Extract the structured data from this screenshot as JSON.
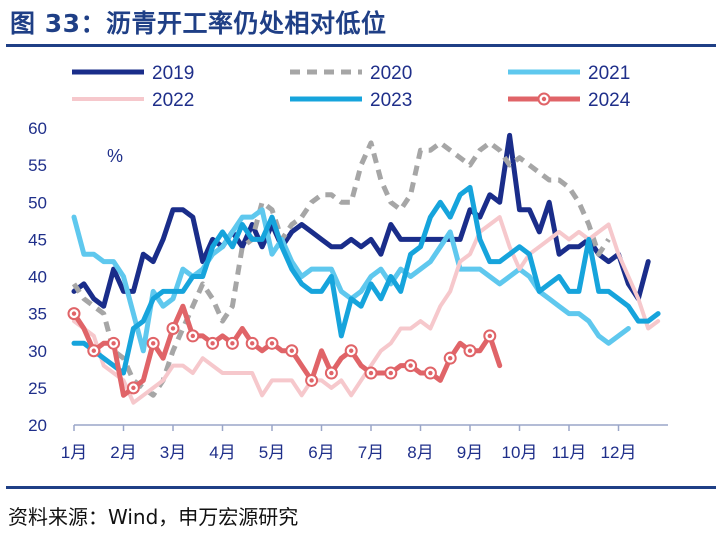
{
  "title": "图 33：沥青开工率仍处相对低位",
  "source": "资料来源：Wind，申万宏源研究",
  "chart_data": {
    "type": "line",
    "unit_label": "%",
    "ylim": [
      20,
      60
    ],
    "yticks": [
      20,
      25,
      30,
      35,
      40,
      45,
      50,
      55,
      60
    ],
    "x_tick_labels": [
      "1月",
      "2月",
      "3月",
      "4月",
      "5月",
      "6月",
      "7月",
      "8月",
      "9月",
      "10月",
      "11月",
      "12月"
    ],
    "x_domain": [
      1,
      13
    ],
    "grid": false,
    "legend": "top",
    "series": [
      {
        "name": "2019",
        "color": "#1a2d8a",
        "style": "solid",
        "width": 5,
        "x": [
          1.0,
          1.2,
          1.4,
          1.6,
          1.8,
          2.0,
          2.2,
          2.4,
          2.6,
          2.8,
          3.0,
          3.2,
          3.4,
          3.6,
          3.8,
          4.0,
          4.2,
          4.4,
          4.6,
          4.8,
          5.0,
          5.2,
          5.4,
          5.6,
          5.8,
          6.0,
          6.2,
          6.4,
          6.6,
          6.8,
          7.0,
          7.2,
          7.4,
          7.6,
          7.8,
          8.0,
          8.2,
          8.4,
          8.6,
          8.8,
          9.0,
          9.2,
          9.4,
          9.6,
          9.8,
          10.0,
          10.2,
          10.4,
          10.6,
          10.8,
          11.0,
          11.2,
          11.4,
          11.6,
          11.8,
          12.0,
          12.2,
          12.4,
          12.6,
          12.8
        ],
        "y": [
          38,
          39,
          37,
          36,
          41,
          38,
          38,
          43,
          42,
          45,
          49,
          49,
          48,
          42,
          45,
          44,
          46,
          44,
          47,
          44,
          47,
          44,
          46,
          47,
          46,
          45,
          44,
          44,
          45,
          44,
          45,
          43,
          47,
          45,
          45,
          45,
          45,
          45,
          45,
          45,
          49,
          48,
          51,
          50,
          59,
          49,
          49,
          46,
          50,
          43,
          44,
          44,
          45,
          43,
          42,
          43,
          39,
          37,
          42,
          null
        ]
      },
      {
        "name": "2020",
        "color": "#a6a6a6",
        "style": "dashed",
        "width": 5,
        "x": [
          1.0,
          1.2,
          1.4,
          1.6,
          1.8,
          2.0,
          2.2,
          2.4,
          2.6,
          2.8,
          3.0,
          3.2,
          3.4,
          3.6,
          3.8,
          4.0,
          4.2,
          4.4,
          4.6,
          4.8,
          5.0,
          5.2,
          5.4,
          5.6,
          5.8,
          6.0,
          6.2,
          6.4,
          6.6,
          6.8,
          7.0,
          7.2,
          7.4,
          7.6,
          7.8,
          8.0,
          8.2,
          8.4,
          8.6,
          8.8,
          9.0,
          9.2,
          9.4,
          9.6,
          9.8,
          10.0,
          10.2,
          10.4,
          10.6,
          10.8,
          11.0,
          11.2,
          11.4,
          11.6,
          11.8,
          12.0,
          12.2,
          12.4,
          12.6,
          12.8
        ],
        "y": [
          39,
          37,
          36,
          35,
          30,
          29,
          26,
          25,
          24,
          26,
          30,
          33,
          36,
          39,
          37,
          34,
          36,
          44,
          45,
          50,
          49,
          45,
          47,
          48,
          50,
          51,
          51,
          50,
          50,
          55,
          58,
          53,
          50,
          49,
          51,
          57,
          57,
          58,
          57,
          56,
          55,
          57,
          58,
          57,
          55,
          56,
          55,
          54,
          53,
          53,
          52,
          50,
          47,
          43,
          45,
          null,
          null,
          null,
          null,
          null
        ]
      },
      {
        "name": "2021",
        "color": "#5fc8ee",
        "style": "solid",
        "width": 5,
        "x": [
          1.0,
          1.2,
          1.4,
          1.6,
          1.8,
          2.0,
          2.2,
          2.4,
          2.6,
          2.8,
          3.0,
          3.2,
          3.4,
          3.6,
          3.8,
          4.0,
          4.2,
          4.4,
          4.6,
          4.8,
          5.0,
          5.2,
          5.4,
          5.6,
          5.8,
          6.0,
          6.2,
          6.4,
          6.6,
          6.8,
          7.0,
          7.2,
          7.4,
          7.6,
          7.8,
          8.0,
          8.2,
          8.4,
          8.6,
          8.8,
          9.0,
          9.2,
          9.4,
          9.6,
          9.8,
          10.0,
          10.2,
          10.4,
          10.6,
          10.8,
          11.0,
          11.2,
          11.4,
          11.6,
          11.8,
          12.0,
          12.2,
          12.4,
          12.6,
          12.8
        ],
        "y": [
          48,
          43,
          43,
          42,
          42,
          40,
          35,
          30,
          38,
          36,
          37,
          41,
          40,
          41,
          43,
          44,
          46,
          48,
          48,
          49,
          43,
          45,
          42,
          40,
          41,
          41,
          41,
          38,
          37,
          38,
          40,
          41,
          39,
          41,
          40,
          41,
          42,
          44,
          46,
          41,
          41,
          41,
          40,
          39,
          40,
          41,
          40,
          38,
          37,
          36,
          35,
          35,
          34,
          32,
          31,
          32,
          33,
          null,
          null,
          null
        ]
      },
      {
        "name": "2022",
        "color": "#f6c8cc",
        "style": "solid",
        "width": 4,
        "x": [
          1.0,
          1.2,
          1.4,
          1.6,
          1.8,
          2.0,
          2.2,
          2.4,
          2.6,
          2.8,
          3.0,
          3.2,
          3.4,
          3.6,
          3.8,
          4.0,
          4.2,
          4.4,
          4.6,
          4.8,
          5.0,
          5.2,
          5.4,
          5.6,
          5.8,
          6.0,
          6.2,
          6.4,
          6.6,
          6.8,
          7.0,
          7.2,
          7.4,
          7.6,
          7.8,
          8.0,
          8.2,
          8.4,
          8.6,
          8.8,
          9.0,
          9.2,
          9.4,
          9.6,
          9.8,
          10.0,
          10.2,
          10.4,
          10.6,
          10.8,
          11.0,
          11.2,
          11.4,
          11.6,
          11.8,
          12.0,
          12.2,
          12.4,
          12.6,
          12.8
        ],
        "y": [
          34,
          33,
          32,
          28,
          27,
          26,
          23,
          24,
          25,
          26,
          28,
          28,
          27,
          29,
          28,
          27,
          27,
          27,
          27,
          24,
          26,
          26,
          26,
          24,
          26,
          26,
          25,
          26,
          24,
          26,
          28,
          30,
          31,
          33,
          33,
          34,
          33,
          36,
          38,
          42,
          43,
          46,
          47,
          48,
          44,
          41,
          43,
          44,
          45,
          46,
          45,
          46,
          45,
          46,
          47,
          43,
          40,
          37,
          33,
          34
        ]
      },
      {
        "name": "2023",
        "color": "#16a4dc",
        "style": "solid",
        "width": 5,
        "x": [
          1.0,
          1.2,
          1.4,
          1.6,
          1.8,
          2.0,
          2.2,
          2.4,
          2.6,
          2.8,
          3.0,
          3.2,
          3.4,
          3.6,
          3.8,
          4.0,
          4.2,
          4.4,
          4.6,
          4.8,
          5.0,
          5.2,
          5.4,
          5.6,
          5.8,
          6.0,
          6.2,
          6.4,
          6.6,
          6.8,
          7.0,
          7.2,
          7.4,
          7.6,
          7.8,
          8.0,
          8.2,
          8.4,
          8.6,
          8.8,
          9.0,
          9.2,
          9.4,
          9.6,
          9.8,
          10.0,
          10.2,
          10.4,
          10.6,
          10.8,
          11.0,
          11.2,
          11.4,
          11.6,
          11.8,
          12.0,
          12.2,
          12.4,
          12.6,
          12.8
        ],
        "y": [
          31,
          31,
          30,
          29,
          28,
          27,
          33,
          34,
          37,
          38,
          38,
          38,
          40,
          40,
          44,
          46,
          44,
          47,
          45,
          45,
          48,
          44,
          41,
          39,
          38,
          38,
          40,
          32,
          37,
          36,
          39,
          37,
          40,
          38,
          43,
          44,
          48,
          50,
          48,
          51,
          52,
          45,
          42,
          42,
          43,
          44,
          43,
          38,
          39,
          40,
          38,
          38,
          45,
          38,
          38,
          37,
          36,
          34,
          34,
          35
        ]
      },
      {
        "name": "2024",
        "color": "#e06468",
        "style": "solid",
        "width": 5,
        "markers": true,
        "x": [
          1.0,
          1.2,
          1.4,
          1.6,
          1.8,
          2.0,
          2.2,
          2.4,
          2.6,
          2.8,
          3.0,
          3.2,
          3.4,
          3.6,
          3.8,
          4.0,
          4.2,
          4.4,
          4.6,
          4.8,
          5.0,
          5.2,
          5.4,
          5.6,
          5.8,
          6.0,
          6.2,
          6.4,
          6.6,
          6.8,
          7.0,
          7.2,
          7.4,
          7.6,
          7.8,
          8.0,
          8.2,
          8.4,
          8.6,
          8.8,
          9.0,
          9.2,
          9.4,
          9.6,
          9.8,
          10.0,
          10.2,
          10.4,
          10.6,
          10.8,
          11.0,
          11.2,
          11.4,
          11.6,
          11.8,
          12.0,
          12.2,
          12.4,
          12.6,
          12.8
        ],
        "y": [
          35,
          33,
          30,
          31,
          31,
          24,
          25,
          26,
          31,
          29,
          33,
          36,
          32,
          32,
          31,
          32,
          31,
          33,
          31,
          30,
          31,
          30,
          30,
          28,
          26,
          30,
          27,
          29,
          30,
          28,
          27,
          27,
          27,
          28,
          28,
          27,
          27,
          26,
          29,
          31,
          30,
          30,
          32,
          28,
          null,
          null,
          null,
          null,
          null,
          null,
          null,
          null,
          null,
          null,
          null,
          null,
          null,
          null,
          null,
          null
        ]
      }
    ]
  }
}
